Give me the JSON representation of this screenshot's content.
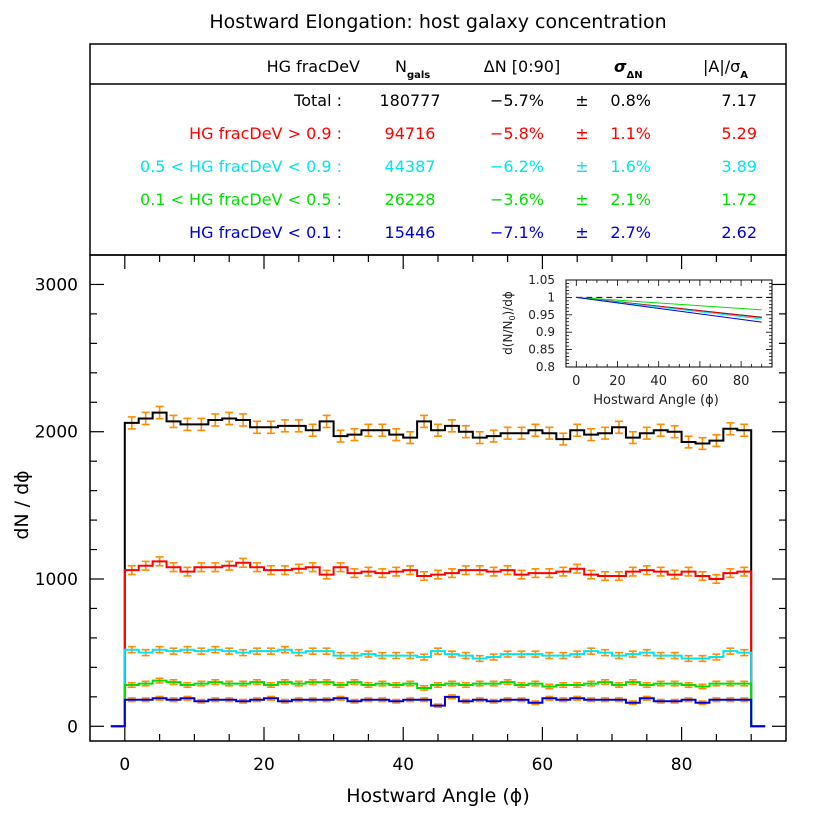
{
  "title": "Hostward Elongation: host galaxy concentration",
  "table": {
    "headers": {
      "label": "HG fracDeV",
      "n_main": "N",
      "n_sub": "gals",
      "dn": "ΔN [0:90]",
      "sigma_main": "σ",
      "sigma_sub": "ΔN",
      "a_main": "|A|/σ",
      "a_sub": "A"
    },
    "pm": "±",
    "rows": [
      {
        "label": "Total :",
        "n": "180777",
        "dn": "−5.7%",
        "sigma": "0.8%",
        "a": "7.17",
        "color": "#000000"
      },
      {
        "label": "HG fracDeV > 0.9 :",
        "n": "94716",
        "dn": "−5.8%",
        "sigma": "1.1%",
        "a": "5.29",
        "color": "#ff0000"
      },
      {
        "label": "0.5 < HG fracDeV < 0.9 :",
        "n": "44387",
        "dn": "−6.2%",
        "sigma": "1.6%",
        "a": "3.89",
        "color": "#00e5ee"
      },
      {
        "label": "0.1 < HG fracDeV < 0.5 :",
        "n": "26228",
        "dn": "−3.6%",
        "sigma": "2.1%",
        "a": "1.72",
        "color": "#00e000"
      },
      {
        "label": "HG fracDeV < 0.1 :",
        "n": "15446",
        "dn": "−7.1%",
        "sigma": "2.7%",
        "a": "2.62",
        "color": "#0000dd"
      }
    ]
  },
  "chart_data": [
    {
      "type": "line",
      "step": true,
      "xlabel": "Hostward Angle (ϕ)",
      "ylabel": "dN / dϕ",
      "xlim": [
        -5,
        95
      ],
      "ylim": [
        -100,
        3200
      ],
      "xticks": [
        0,
        20,
        40,
        60,
        80
      ],
      "yticks": [
        0,
        1000,
        2000,
        3000
      ],
      "grid": false,
      "errorbar_color": "#ff8c00",
      "bin_edges": [
        0,
        2,
        4,
        6,
        8,
        10,
        12,
        14,
        16,
        18,
        20,
        22,
        24,
        26,
        28,
        30,
        32,
        34,
        36,
        38,
        40,
        42,
        44,
        46,
        48,
        50,
        52,
        54,
        56,
        58,
        60,
        62,
        64,
        66,
        68,
        70,
        72,
        74,
        76,
        78,
        80,
        82,
        84,
        86,
        88,
        90
      ],
      "series": [
        {
          "color": "#000000",
          "values": [
            2060,
            2090,
            2130,
            2070,
            2050,
            2050,
            2080,
            2090,
            2080,
            2030,
            2030,
            2040,
            2040,
            2010,
            2070,
            1970,
            1980,
            2010,
            2010,
            1980,
            1960,
            2070,
            2010,
            2040,
            2000,
            1960,
            1970,
            1990,
            1990,
            2010,
            1990,
            1950,
            2010,
            1980,
            1990,
            2030,
            1960,
            1990,
            2010,
            2000,
            1930,
            1920,
            1940,
            2020,
            2010
          ]
        },
        {
          "color": "#ff0000",
          "values": [
            1060,
            1090,
            1120,
            1080,
            1050,
            1080,
            1080,
            1090,
            1110,
            1080,
            1060,
            1060,
            1070,
            1080,
            1030,
            1080,
            1040,
            1050,
            1040,
            1050,
            1060,
            1020,
            1030,
            1040,
            1060,
            1060,
            1050,
            1060,
            1030,
            1040,
            1040,
            1050,
            1070,
            1030,
            1020,
            1020,
            1050,
            1060,
            1050,
            1030,
            1050,
            1020,
            1000,
            1040,
            1050
          ]
        },
        {
          "color": "#00e5ee",
          "values": [
            520,
            500,
            520,
            510,
            520,
            510,
            520,
            510,
            500,
            510,
            510,
            520,
            500,
            510,
            510,
            480,
            480,
            490,
            480,
            480,
            480,
            470,
            510,
            490,
            480,
            460,
            470,
            490,
            490,
            490,
            480,
            480,
            490,
            510,
            500,
            480,
            490,
            500,
            480,
            480,
            460,
            460,
            470,
            510,
            500
          ]
        },
        {
          "color": "#00e000",
          "values": [
            280,
            290,
            310,
            300,
            280,
            290,
            300,
            290,
            290,
            300,
            280,
            300,
            290,
            300,
            300,
            280,
            300,
            280,
            290,
            280,
            290,
            260,
            280,
            290,
            280,
            290,
            290,
            300,
            280,
            290,
            270,
            280,
            280,
            290,
            300,
            280,
            300,
            280,
            290,
            290,
            280,
            270,
            290,
            290,
            290
          ]
        },
        {
          "color": "#0000dd",
          "values": [
            180,
            180,
            190,
            180,
            190,
            170,
            180,
            180,
            170,
            180,
            190,
            170,
            180,
            180,
            180,
            190,
            170,
            180,
            180,
            170,
            180,
            180,
            140,
            200,
            170,
            180,
            170,
            180,
            180,
            160,
            190,
            180,
            190,
            180,
            180,
            180,
            160,
            190,
            170,
            170,
            180,
            160,
            180,
            180,
            180
          ]
        }
      ]
    },
    {
      "type": "line",
      "inset": true,
      "xlabel": "Hostward Angle (ϕ)",
      "ylabel": "d(N/N0)/dϕ",
      "ylabel_parts": {
        "pre": "d(N/N",
        "sub": "0",
        "post": ")/dϕ"
      },
      "xlim": [
        -5,
        95
      ],
      "ylim": [
        0.8,
        1.05
      ],
      "xticks": [
        0,
        20,
        40,
        60,
        80
      ],
      "yticks": [
        0.8,
        0.85,
        0.9,
        0.95,
        1,
        1.05
      ],
      "ytick_labels": [
        "0.8",
        "0.85",
        "0.9",
        "0.95",
        "1",
        "1.05"
      ],
      "reference_y": 1,
      "series": [
        {
          "color": "#000000",
          "x": [
            0,
            90
          ],
          "y": [
            1.0,
            0.943
          ]
        },
        {
          "color": "#ff0000",
          "x": [
            0,
            90
          ],
          "y": [
            1.0,
            0.942
          ]
        },
        {
          "color": "#00e5ee",
          "x": [
            0,
            90
          ],
          "y": [
            1.0,
            0.938
          ]
        },
        {
          "color": "#00e000",
          "x": [
            0,
            90
          ],
          "y": [
            1.0,
            0.964
          ]
        },
        {
          "color": "#0000dd",
          "x": [
            0,
            90
          ],
          "y": [
            1.0,
            0.929
          ]
        }
      ]
    }
  ]
}
